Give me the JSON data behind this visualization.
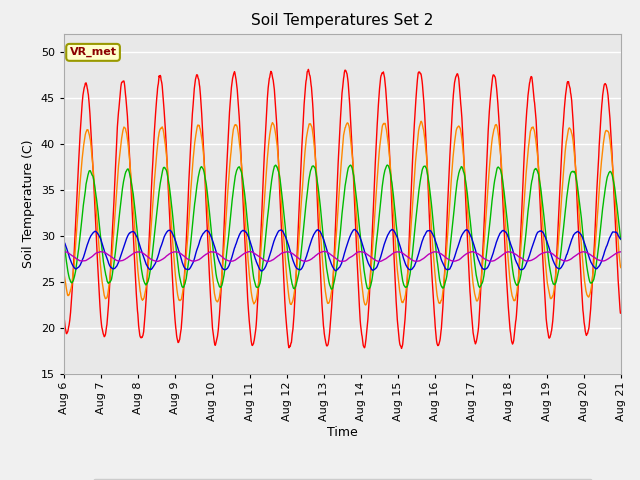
{
  "title": "Soil Temperatures Set 2",
  "xlabel": "Time",
  "ylabel": "Soil Temperature (C)",
  "ylim": [
    15,
    52
  ],
  "xlim": [
    0,
    360
  ],
  "annotation_text": "VR_met",
  "background_color": "#e8e8e8",
  "fig_facecolor": "#f0f0f0",
  "series_colors": {
    "Tsoil -2cm": "#ff0000",
    "Tsoil -4cm": "#ff8800",
    "Tsoil -8cm": "#00bb00",
    "Tsoil -16cm": "#0000dd",
    "Tsoil -32cm": "#bb00bb"
  },
  "x_tick_labels": [
    "Aug 6",
    "Aug 7",
    "Aug 8",
    "Aug 9",
    "Aug 10",
    "Aug 11",
    "Aug 12",
    "Aug 13",
    "Aug 14",
    "Aug 15",
    "Aug 16",
    "Aug 17",
    "Aug 18",
    "Aug 19",
    "Aug 20",
    "Aug 21"
  ],
  "x_tick_positions": [
    0,
    24,
    48,
    72,
    96,
    120,
    144,
    168,
    192,
    216,
    240,
    264,
    288,
    312,
    336,
    360
  ],
  "y_ticks": [
    15,
    20,
    25,
    30,
    35,
    40,
    45,
    50
  ],
  "num_points": 1441
}
